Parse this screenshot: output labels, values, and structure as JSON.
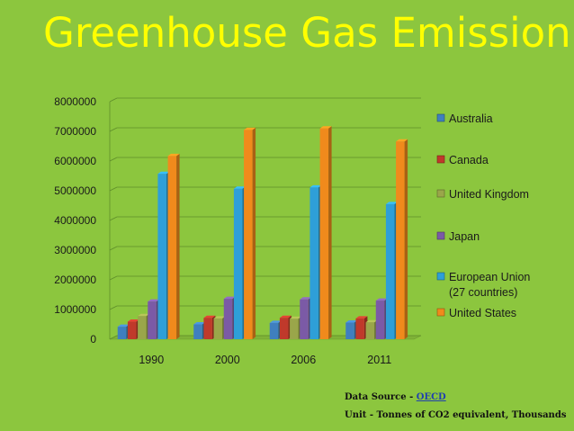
{
  "title": "Greenhouse Gas Emission",
  "source": {
    "label": "Data Source - ",
    "link": "OECD"
  },
  "unit_note": "Unit - Tonnes of CO2 equivalent, Thousands",
  "chart_data": {
    "type": "bar",
    "title": "",
    "xlabel": "",
    "ylabel": "",
    "categories": [
      "1990",
      "2000",
      "2006",
      "2011"
    ],
    "ylim": [
      0,
      8000000
    ],
    "yticks": [
      "0",
      "1000000",
      "2000000",
      "3000000",
      "4000000",
      "5000000",
      "6000000",
      "7000000",
      "8000000"
    ],
    "grid": true,
    "legend_position": "right",
    "series": [
      {
        "name": "Australia",
        "color": "#3f7fbf",
        "values": [
          420000,
          500000,
          550000,
          560000
        ]
      },
      {
        "name": "Canada",
        "color": "#c0392b",
        "values": [
          590000,
          720000,
          720000,
          700000
        ]
      },
      {
        "name": "United Kingdom",
        "color": "#9aa64a",
        "values": [
          780000,
          700000,
          690000,
          570000
        ]
      },
      {
        "name": "Japan",
        "color": "#7b5aa6",
        "values": [
          1270000,
          1360000,
          1340000,
          1300000
        ]
      },
      {
        "name": "European Union (27 countries)",
        "color": "#2e9fd8",
        "values": [
          5570000,
          5070000,
          5110000,
          4550000
        ]
      },
      {
        "name": "United States",
        "color": "#f08a1c",
        "values": [
          6170000,
          7050000,
          7100000,
          6660000
        ]
      }
    ]
  }
}
